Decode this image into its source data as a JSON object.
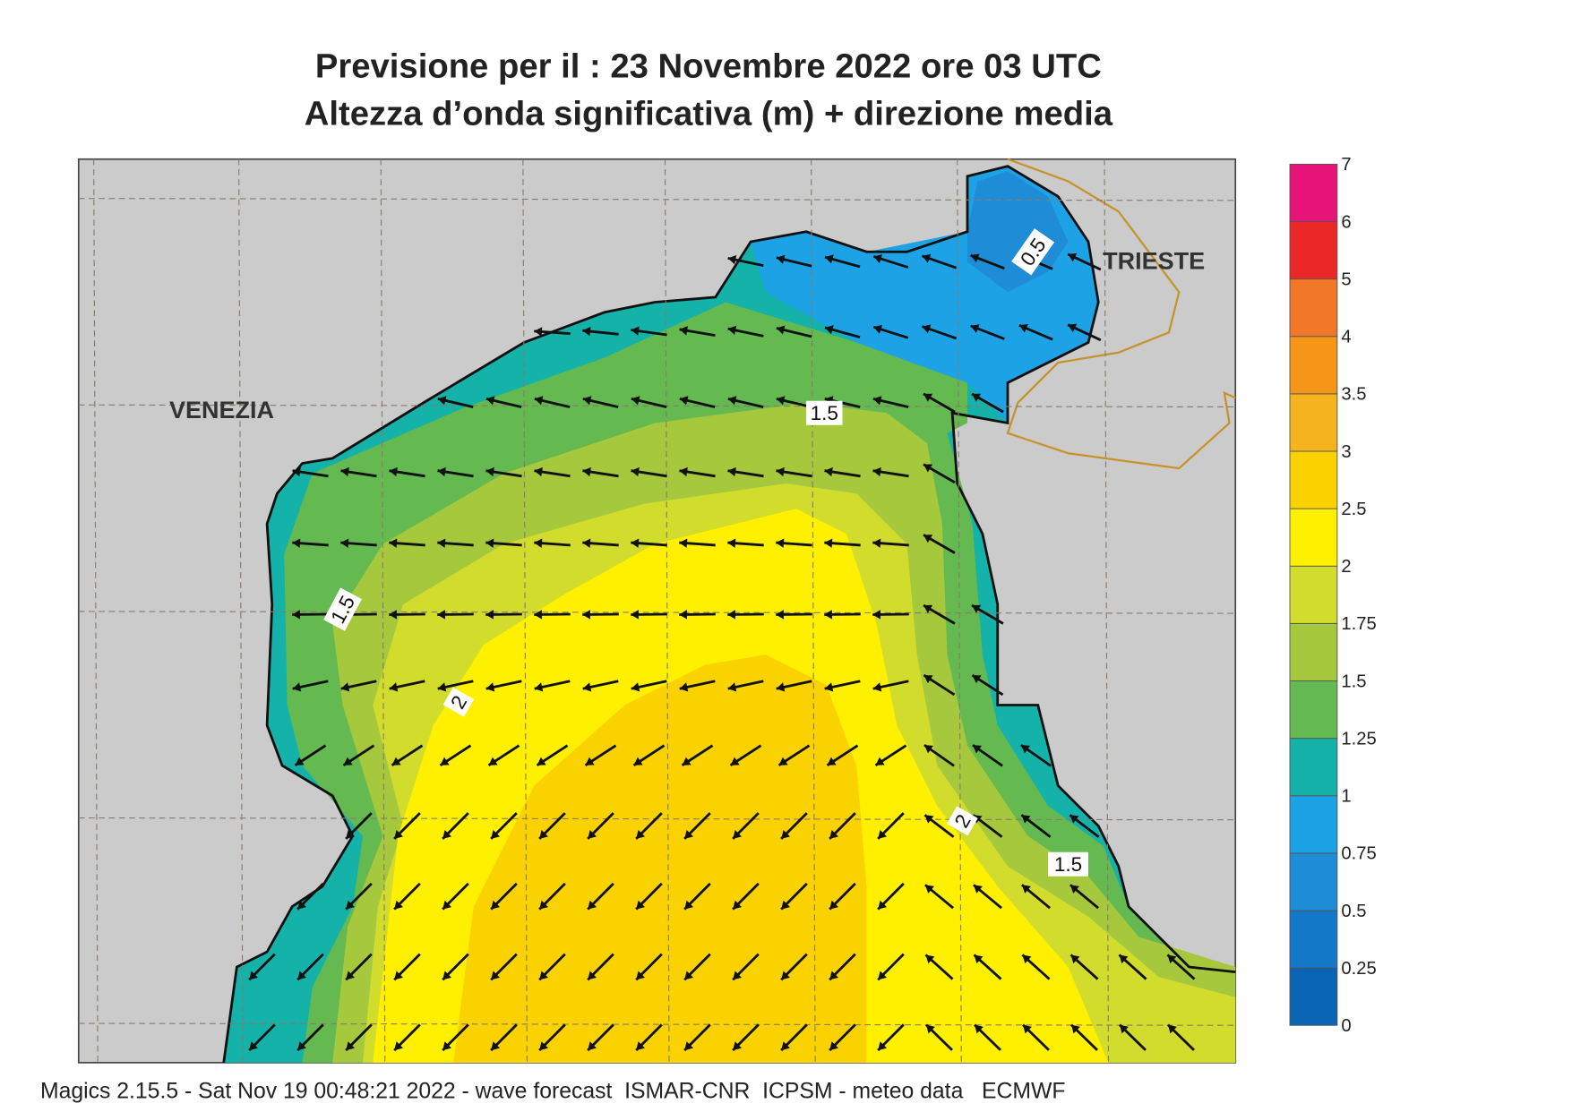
{
  "header": {
    "title": "Previsione per il  :  23 Novembre  2022   ore 03 UTC",
    "subtitle": "Altezza d’onda significativa (m) + direzione media"
  },
  "places": [
    "VENEZIA",
    "TRIESTE"
  ],
  "contour_labels": [
    "0.5",
    "1.5",
    "1.5",
    "2",
    "2",
    "1.5"
  ],
  "legend": {
    "levels": [
      0,
      0.25,
      0.5,
      0.75,
      1,
      1.25,
      1.5,
      1.75,
      2,
      2.5,
      3,
      3.5,
      4,
      5,
      6,
      7
    ],
    "colors": [
      "#0a64b4",
      "#1478c8",
      "#1e8cd7",
      "#1ea2e6",
      "#14b2a8",
      "#64b950",
      "#a5c83c",
      "#d2dc2d",
      "#fff000",
      "#fad200",
      "#f5b41e",
      "#f59619",
      "#f07828",
      "#eb2828",
      "#e61478"
    ]
  },
  "footer": "Magics 2.15.5 - Sat Nov 19 00:48:21 2022 - wave forecast  ISMAR-CNR  ICPSM - meteo data   ECMWF"
}
